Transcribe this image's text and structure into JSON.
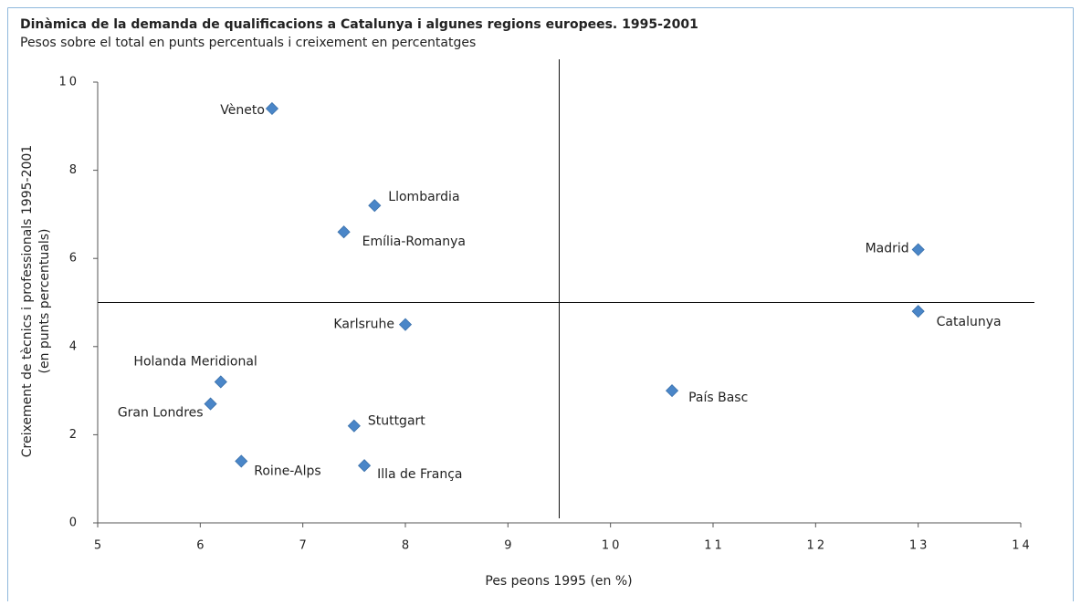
{
  "chart_data": {
    "type": "scatter",
    "title": "Dinàmica de la demanda de qualificacions a Catalunya i algunes regions europees. 1995-2001",
    "subtitle": "Pesos sobre el total en punts percentuals i creixement en percentatges",
    "xlabel": "Pes peons 1995 (en %)",
    "ylabel": [
      "Creixement de tècnics i professionals 1995-2001",
      "(en punts percentuals)"
    ],
    "xlim": [
      5,
      14
    ],
    "xticks": [
      5,
      6,
      7,
      8,
      9,
      10,
      11,
      12,
      13,
      14
    ],
    "ylim": [
      0,
      10
    ],
    "yticks": [
      0,
      2,
      4,
      6,
      8,
      10
    ],
    "color": "#4a86c8",
    "reference_lines": {
      "x": 9.5,
      "y": 5
    },
    "labels": [
      "Vèneto",
      "Llombardia",
      "Emília-Romanya",
      "Madrid",
      "Catalunya",
      "Karlsruhe",
      "Holanda Meridional",
      "Gran Londres",
      "País Basc",
      "Stuttgart",
      "Roine-Alps",
      "Illa de França"
    ],
    "x": [
      6.7,
      7.7,
      7.4,
      13,
      13,
      8,
      6.2,
      6.1,
      10.6,
      7.5,
      6.4,
      7.6
    ],
    "values": [
      9.4,
      7.2,
      6.6,
      6.2,
      4.8,
      4.5,
      3.2,
      2.7,
      3.0,
      2.2,
      1.4,
      1.3
    ]
  }
}
